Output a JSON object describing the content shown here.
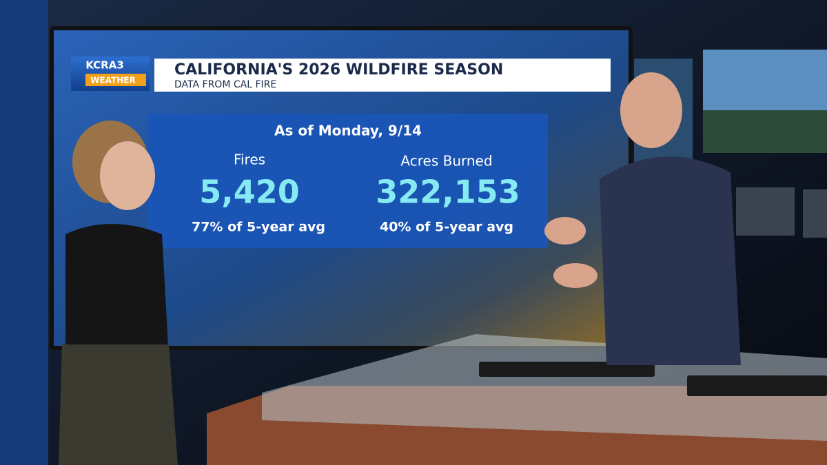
{
  "logo": {
    "station": "KCRA3",
    "brand": "WEATHER"
  },
  "header": {
    "title": "CALIFORNIA'S 2026 WILDFIRE SEASON",
    "subtitle": "DATA FROM CAL FIRE"
  },
  "panel": {
    "date": "As of Monday, 9/14",
    "stats": [
      {
        "label": "Fires",
        "value": "5,420",
        "note": "77% of 5-year avg"
      },
      {
        "label": "Acres Burned",
        "value": "322,153",
        "note": "40% of 5-year avg"
      }
    ]
  }
}
